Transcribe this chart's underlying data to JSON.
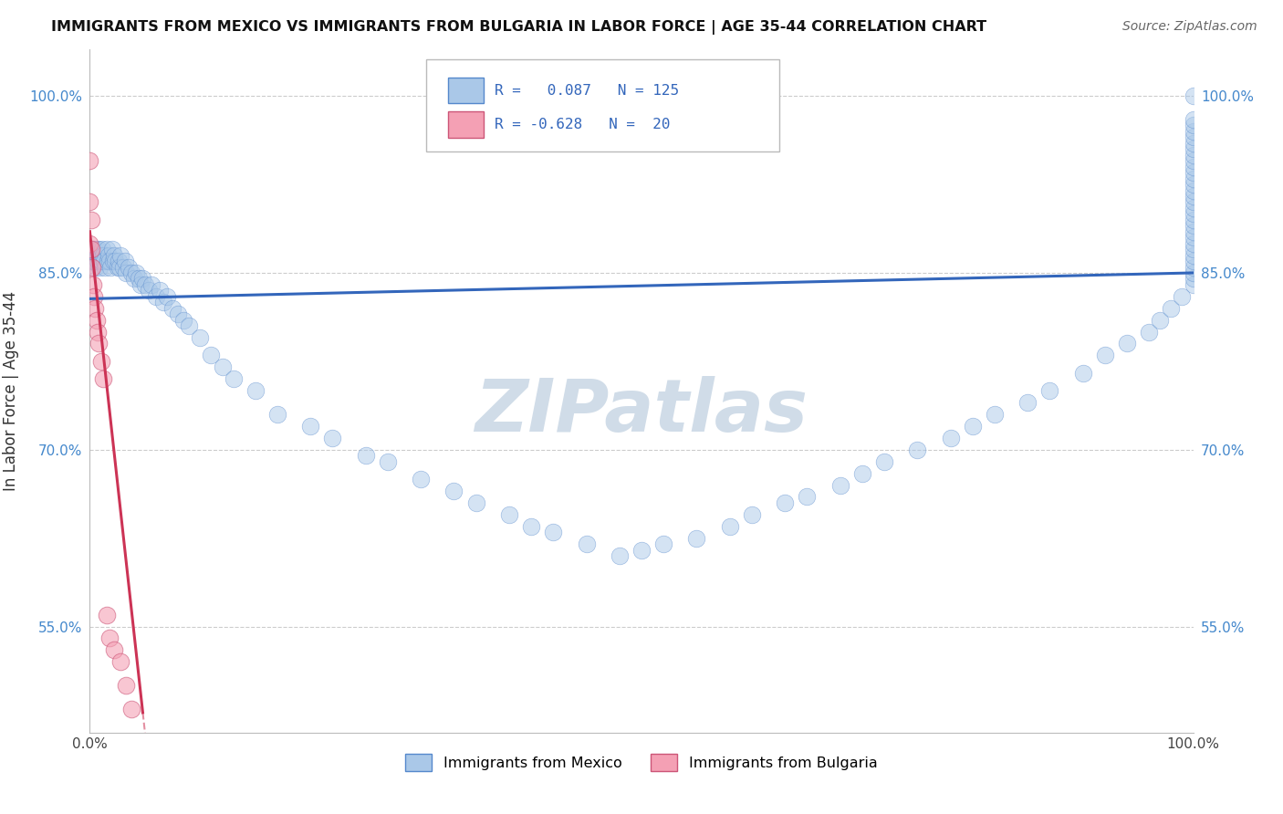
{
  "title": "IMMIGRANTS FROM MEXICO VS IMMIGRANTS FROM BULGARIA IN LABOR FORCE | AGE 35-44 CORRELATION CHART",
  "source": "Source: ZipAtlas.com",
  "ylabel": "In Labor Force | Age 35-44",
  "ytick_values": [
    0.55,
    0.7,
    0.85,
    1.0
  ],
  "ytick_labels": [
    "55.0%",
    "70.0%",
    "85.0%",
    "100.0%"
  ],
  "xlim": [
    0.0,
    1.0
  ],
  "ylim": [
    0.46,
    1.04
  ],
  "legend_r_mexico": "0.087",
  "legend_n_mexico": "125",
  "legend_r_bulgaria": "-0.628",
  "legend_n_bulgaria": "20",
  "mexico_color": "#aac8e8",
  "mexico_edge": "#5588cc",
  "bulgaria_color": "#f4a0b4",
  "bulgaria_edge": "#cc5577",
  "trend_mexico_color": "#3366bb",
  "trend_bulgaria_color": "#cc3355",
  "watermark_color": "#d0dce8",
  "trend_mex_y0": 0.828,
  "trend_mex_y1": 0.85,
  "trend_bul_intercept": 0.885,
  "trend_bul_slope": -8.5,
  "trend_bul_solid_end": 0.048,
  "trend_bul_dash_end": 0.13,
  "mexico_x": [
    0.0,
    0.0,
    0.0,
    0.002,
    0.002,
    0.003,
    0.004,
    0.005,
    0.005,
    0.006,
    0.007,
    0.007,
    0.008,
    0.009,
    0.01,
    0.01,
    0.011,
    0.012,
    0.013,
    0.014,
    0.015,
    0.016,
    0.017,
    0.018,
    0.019,
    0.02,
    0.021,
    0.022,
    0.023,
    0.025,
    0.026,
    0.027,
    0.028,
    0.03,
    0.032,
    0.033,
    0.035,
    0.038,
    0.04,
    0.042,
    0.044,
    0.046,
    0.048,
    0.05,
    0.053,
    0.056,
    0.06,
    0.063,
    0.067,
    0.07,
    0.075,
    0.08,
    0.085,
    0.09,
    0.1,
    0.11,
    0.12,
    0.13,
    0.15,
    0.17,
    0.2,
    0.22,
    0.25,
    0.27,
    0.3,
    0.33,
    0.35,
    0.38,
    0.4,
    0.42,
    0.45,
    0.48,
    0.5,
    0.52,
    0.55,
    0.58,
    0.6,
    0.63,
    0.65,
    0.68,
    0.7,
    0.72,
    0.75,
    0.78,
    0.8,
    0.82,
    0.85,
    0.87,
    0.9,
    0.92,
    0.94,
    0.96,
    0.97,
    0.98,
    0.99,
    1.0,
    1.0,
    1.0,
    1.0,
    1.0,
    1.0,
    1.0,
    1.0,
    1.0,
    1.0,
    1.0,
    1.0,
    1.0,
    1.0,
    1.0,
    1.0,
    1.0,
    1.0,
    1.0,
    1.0,
    1.0,
    1.0,
    1.0,
    1.0,
    1.0,
    1.0,
    1.0,
    1.0,
    1.0,
    1.0
  ],
  "mexico_y": [
    0.87,
    0.865,
    0.86,
    0.87,
    0.865,
    0.86,
    0.87,
    0.86,
    0.855,
    0.87,
    0.865,
    0.86,
    0.87,
    0.855,
    0.865,
    0.86,
    0.87,
    0.865,
    0.86,
    0.855,
    0.87,
    0.86,
    0.865,
    0.86,
    0.855,
    0.87,
    0.86,
    0.865,
    0.86,
    0.855,
    0.86,
    0.855,
    0.865,
    0.855,
    0.86,
    0.85,
    0.855,
    0.85,
    0.845,
    0.85,
    0.845,
    0.84,
    0.845,
    0.84,
    0.835,
    0.84,
    0.83,
    0.835,
    0.825,
    0.83,
    0.82,
    0.815,
    0.81,
    0.805,
    0.795,
    0.78,
    0.77,
    0.76,
    0.75,
    0.73,
    0.72,
    0.71,
    0.695,
    0.69,
    0.675,
    0.665,
    0.655,
    0.645,
    0.635,
    0.63,
    0.62,
    0.61,
    0.615,
    0.62,
    0.625,
    0.635,
    0.645,
    0.655,
    0.66,
    0.67,
    0.68,
    0.69,
    0.7,
    0.71,
    0.72,
    0.73,
    0.74,
    0.75,
    0.765,
    0.78,
    0.79,
    0.8,
    0.81,
    0.82,
    0.83,
    0.84,
    0.845,
    0.85,
    0.855,
    0.86,
    0.865,
    0.87,
    0.875,
    0.88,
    0.885,
    0.89,
    0.895,
    0.9,
    0.905,
    0.91,
    0.915,
    0.92,
    0.925,
    0.93,
    0.935,
    0.94,
    0.945,
    0.95,
    0.955,
    0.96,
    0.965,
    0.97,
    0.975,
    0.98,
    1.0
  ],
  "bulgaria_x": [
    0.0,
    0.0,
    0.0,
    0.001,
    0.001,
    0.002,
    0.003,
    0.004,
    0.005,
    0.006,
    0.007,
    0.008,
    0.01,
    0.012,
    0.015,
    0.018,
    0.022,
    0.028,
    0.033,
    0.038
  ],
  "bulgaria_y": [
    0.945,
    0.91,
    0.875,
    0.895,
    0.87,
    0.855,
    0.84,
    0.83,
    0.82,
    0.81,
    0.8,
    0.79,
    0.775,
    0.76,
    0.56,
    0.54,
    0.53,
    0.52,
    0.5,
    0.48
  ]
}
